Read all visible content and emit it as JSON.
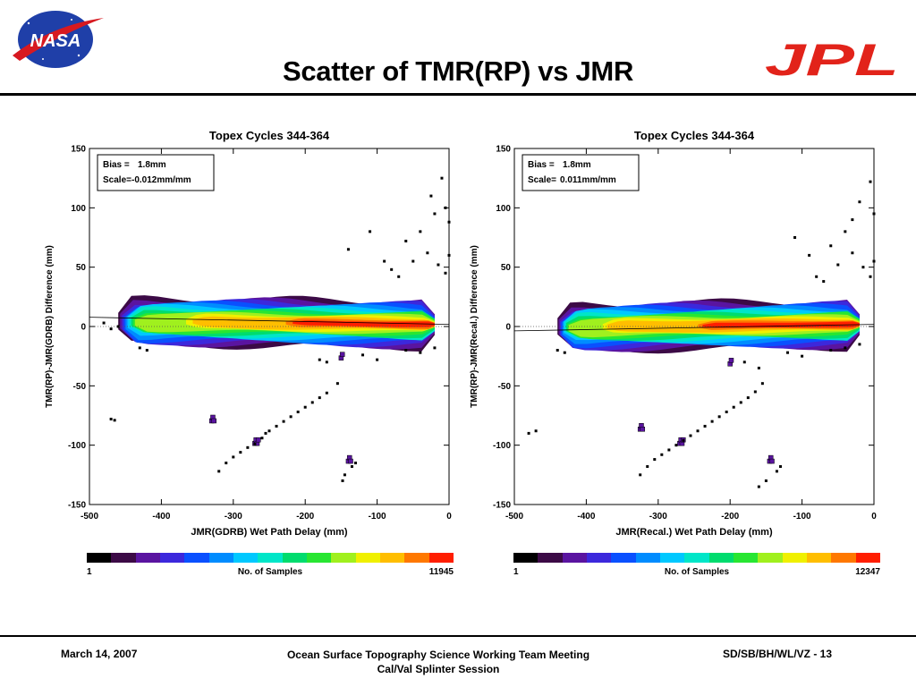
{
  "slide": {
    "title": "Scatter of TMR(RP) vs JMR",
    "logos": {
      "left": "NASA",
      "right": "JPL"
    },
    "footer": {
      "date": "March 14, 2007",
      "meeting_line1": "Ocean Surface Topography Science Working Team Meeting",
      "meeting_line2": "Cal/Val Splinter Session",
      "page": "SD/SB/BH/WL/VZ - 13"
    }
  },
  "colors": {
    "density_scale": [
      "#000000",
      "#3c0a46",
      "#5a14a0",
      "#3c28dc",
      "#0a50ff",
      "#008cff",
      "#00c8ff",
      "#00e6c8",
      "#00dc6e",
      "#28e632",
      "#a0f01e",
      "#f0f000",
      "#ffbe00",
      "#ff7800",
      "#ff1e00"
    ],
    "fit_line": "#000000"
  },
  "chart_data": [
    {
      "type": "scatter",
      "title": "Topex Cycles 344-364",
      "xlabel": "JMR(GDRB) Wet Path Delay (mm)",
      "ylabel": "TMR(RP)-JMR(GDRB) Difference (mm)",
      "xlim": [
        -500,
        0
      ],
      "ylim": [
        -150,
        150
      ],
      "xticks": [
        -500,
        -400,
        -300,
        -200,
        -100,
        0
      ],
      "yticks": [
        -150,
        -100,
        -50,
        0,
        50,
        100,
        150
      ],
      "annotation": {
        "bias_label": "Bias =",
        "bias_value": "1.8mm",
        "scale_label": "Scale=",
        "scale_value": "-0.012mm/mm"
      },
      "fit": {
        "bias": 1.8,
        "scale": -0.012
      },
      "colorbar": {
        "label": "No. of Samples",
        "min": "1",
        "max": "11945"
      },
      "grid": false,
      "density_band": [
        [
          -460,
          3.5
        ],
        [
          -400,
          4
        ],
        [
          -300,
          3.5
        ],
        [
          -200,
          2.8
        ],
        [
          -100,
          2.2
        ],
        [
          -20,
          1.8
        ]
      ],
      "outlier_clusters": [
        {
          "x": -330,
          "y": -78,
          "n": 3
        },
        {
          "x": -140,
          "y": -112,
          "n": 3
        },
        {
          "x": -270,
          "y": -97,
          "n": 4
        },
        {
          "x": -150,
          "y": -25,
          "n": 2
        }
      ],
      "outliers": [
        [
          -470,
          -78
        ],
        [
          -465,
          -79
        ],
        [
          -320,
          -122
        ],
        [
          -310,
          -115
        ],
        [
          -300,
          -110
        ],
        [
          -290,
          -106
        ],
        [
          -280,
          -102
        ],
        [
          -270,
          -99
        ],
        [
          -260,
          -94
        ],
        [
          -255,
          -90
        ],
        [
          -250,
          -88
        ],
        [
          -240,
          -84
        ],
        [
          -230,
          -80
        ],
        [
          -220,
          -76
        ],
        [
          -210,
          -72
        ],
        [
          -200,
          -68
        ],
        [
          -190,
          -64
        ],
        [
          -180,
          -60
        ],
        [
          -170,
          -56
        ],
        [
          -155,
          -48
        ],
        [
          -145,
          -125
        ],
        [
          -148,
          -130
        ],
        [
          -135,
          -118
        ],
        [
          -130,
          -115
        ],
        [
          -25,
          110
        ],
        [
          -10,
          125
        ],
        [
          -5,
          100
        ],
        [
          0,
          88
        ],
        [
          -20,
          95
        ],
        [
          0,
          60
        ],
        [
          -140,
          65
        ],
        [
          -110,
          80
        ],
        [
          -90,
          55
        ],
        [
          -60,
          72
        ],
        [
          -40,
          80
        ],
        [
          -30,
          62
        ],
        [
          -80,
          48
        ],
        [
          -70,
          42
        ],
        [
          -50,
          55
        ],
        [
          -15,
          52
        ],
        [
          -5,
          45
        ],
        [
          -470,
          -2
        ],
        [
          -480,
          3
        ],
        [
          -460,
          0
        ],
        [
          -430,
          -18
        ],
        [
          -420,
          -20
        ],
        [
          -180,
          -28
        ],
        [
          -170,
          -30
        ],
        [
          -120,
          -24
        ],
        [
          -100,
          -28
        ],
        [
          -60,
          -20
        ],
        [
          -40,
          -22
        ],
        [
          -20,
          -18
        ]
      ]
    },
    {
      "type": "scatter",
      "title": "Topex Cycles 344-364",
      "xlabel": "JMR(Recal.) Wet Path Delay (mm)",
      "ylabel": "TMR(RP)-JMR(Recal.) Difference (mm)",
      "xlim": [
        -500,
        0
      ],
      "ylim": [
        -150,
        150
      ],
      "xticks": [
        -500,
        -400,
        -300,
        -200,
        -100,
        0
      ],
      "yticks": [
        -150,
        -100,
        -50,
        0,
        50,
        100,
        150
      ],
      "annotation": {
        "bias_label": "Bias =",
        "bias_value": "1.8mm",
        "scale_label": "Scale=",
        "scale_value": "0.011mm/mm"
      },
      "fit": {
        "bias": 1.8,
        "scale": 0.011
      },
      "colorbar": {
        "label": "No. of Samples",
        "min": "1",
        "max": "12347"
      },
      "grid": false,
      "density_band": [
        [
          -440,
          -1
        ],
        [
          -400,
          -0.5
        ],
        [
          -300,
          0.2
        ],
        [
          -200,
          0.8
        ],
        [
          -100,
          1.5
        ],
        [
          -20,
          1.8
        ]
      ],
      "outlier_clusters": [
        {
          "x": -325,
          "y": -85,
          "n": 3
        },
        {
          "x": -145,
          "y": -112,
          "n": 3
        },
        {
          "x": -270,
          "y": -97,
          "n": 4
        },
        {
          "x": -200,
          "y": -30,
          "n": 2
        }
      ],
      "outliers": [
        [
          -470,
          -88
        ],
        [
          -480,
          -90
        ],
        [
          -325,
          -125
        ],
        [
          -315,
          -118
        ],
        [
          -305,
          -112
        ],
        [
          -295,
          -108
        ],
        [
          -285,
          -104
        ],
        [
          -275,
          -100
        ],
        [
          -265,
          -96
        ],
        [
          -255,
          -92
        ],
        [
          -245,
          -88
        ],
        [
          -235,
          -84
        ],
        [
          -225,
          -80
        ],
        [
          -215,
          -76
        ],
        [
          -205,
          -72
        ],
        [
          -195,
          -68
        ],
        [
          -185,
          -64
        ],
        [
          -175,
          -60
        ],
        [
          -165,
          -55
        ],
        [
          -155,
          -48
        ],
        [
          -160,
          -135
        ],
        [
          -150,
          -130
        ],
        [
          -135,
          -122
        ],
        [
          -130,
          -118
        ],
        [
          -20,
          105
        ],
        [
          -5,
          122
        ],
        [
          0,
          95
        ],
        [
          -30,
          90
        ],
        [
          0,
          55
        ],
        [
          -110,
          75
        ],
        [
          -90,
          60
        ],
        [
          -60,
          68
        ],
        [
          -40,
          80
        ],
        [
          -30,
          62
        ],
        [
          -80,
          42
        ],
        [
          -70,
          38
        ],
        [
          -50,
          52
        ],
        [
          -15,
          50
        ],
        [
          -5,
          42
        ],
        [
          -180,
          -30
        ],
        [
          -160,
          -35
        ],
        [
          -120,
          -22
        ],
        [
          -100,
          -25
        ],
        [
          -60,
          -20
        ],
        [
          -40,
          -18
        ],
        [
          -20,
          -15
        ],
        [
          -440,
          -20
        ],
        [
          -430,
          -22
        ]
      ]
    }
  ]
}
